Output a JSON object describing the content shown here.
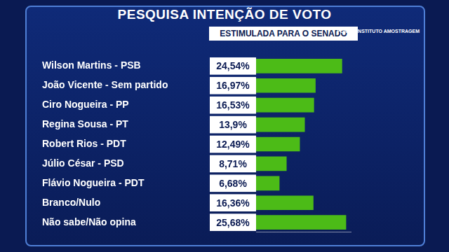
{
  "chart_data": {
    "type": "bar",
    "orientation": "horizontal",
    "title": "PESQUISA INTENÇÃO DE VOTO",
    "subtitle": "ESTIMULADA PARA O SENADO",
    "source": "FONTE: INSTITUTO AMOSTRAGEM",
    "categories": [
      "Wilson Martins - PSB",
      "João Vicente - Sem partido",
      "Ciro Nogueira - PP",
      "Regina Sousa - PT",
      "Robert Rios - PDT",
      "Júlio César - PSD",
      "Flávio Nogueira - PDT",
      "Branco/Nulo",
      "Não sabe/Não opina"
    ],
    "values": [
      24.54,
      16.97,
      16.53,
      13.9,
      12.49,
      8.71,
      6.68,
      16.36,
      25.68
    ],
    "value_labels": [
      "24,54%",
      "16,97%",
      "16,53%",
      "13,9%",
      "12,49%",
      "8,71%",
      "6,68%",
      "16,36%",
      "25,68%"
    ],
    "color": "#4cbb17",
    "xlim": [
      0,
      27
    ],
    "grid": false,
    "data_labels": true,
    "tick_labels": "y"
  }
}
